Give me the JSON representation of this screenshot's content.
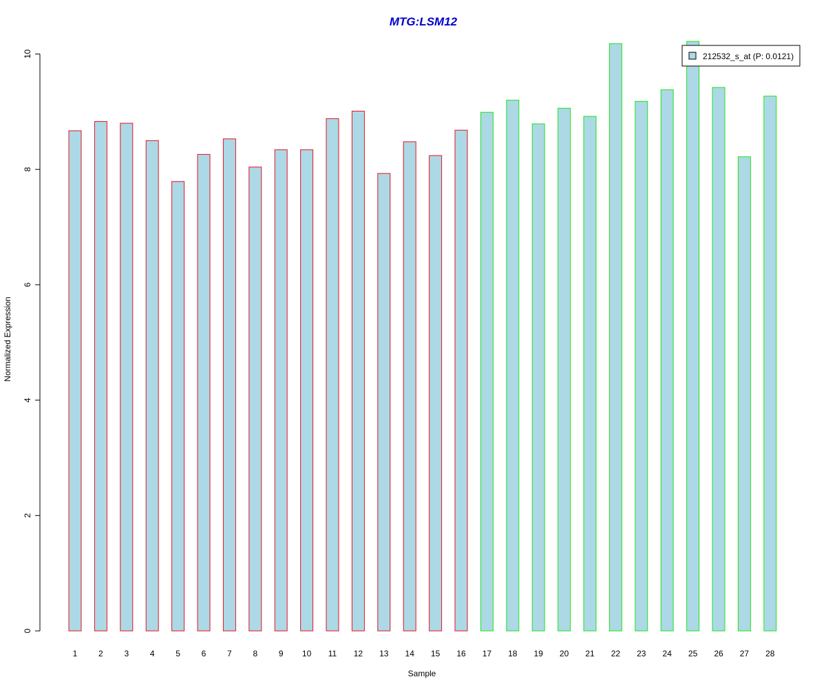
{
  "chart_data": {
    "type": "bar",
    "title": "MTG:LSM12",
    "xlabel": "Sample",
    "ylabel": "Normalized Expression",
    "categories": [
      "1",
      "2",
      "3",
      "4",
      "5",
      "6",
      "7",
      "8",
      "9",
      "10",
      "11",
      "12",
      "13",
      "14",
      "15",
      "16",
      "17",
      "18",
      "19",
      "20",
      "21",
      "22",
      "23",
      "24",
      "25",
      "26",
      "27",
      "28"
    ],
    "series": [
      {
        "name": "212532_s_at (P: 0.0121)",
        "values": [
          8.67,
          8.83,
          8.8,
          8.5,
          7.79,
          8.26,
          8.53,
          8.04,
          8.34,
          8.34,
          8.88,
          9.01,
          7.93,
          8.48,
          8.24,
          8.68,
          8.99,
          9.2,
          8.79,
          9.06,
          8.92,
          10.18,
          9.18,
          9.38,
          10.22,
          9.42,
          8.22,
          9.27
        ]
      }
    ],
    "groups": [
      {
        "from": 1,
        "to": 16,
        "border_color": "#e8121e"
      },
      {
        "from": 17,
        "to": 28,
        "border_color": "#19e619"
      }
    ],
    "yticks": [
      "0",
      "2",
      "4",
      "6",
      "8",
      "10"
    ],
    "ylim": [
      0,
      10.22
    ],
    "grid": false,
    "legend_position": "top-right",
    "colors": {
      "bar_fill": "#add8e6",
      "title": "#0000cc"
    }
  }
}
